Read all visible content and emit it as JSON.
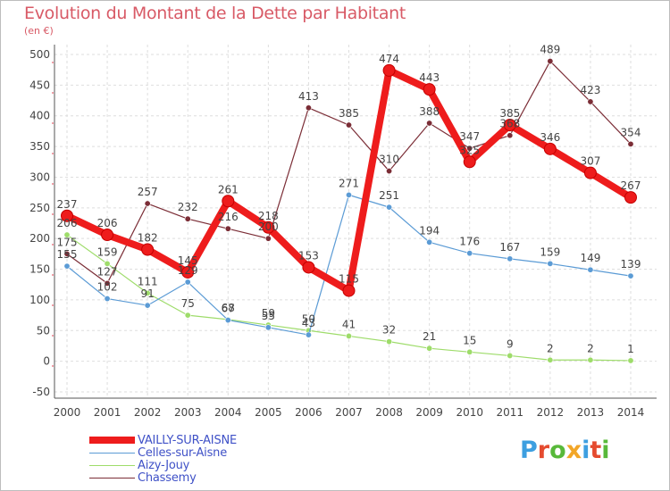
{
  "title": "Evolution du Montant de la Dette par Habitant",
  "subtitle": "(en €)",
  "logo": {
    "text": "Proxiti",
    "colors": [
      "#3d9fe0",
      "#e54b2f",
      "#58b93a",
      "#f2a627",
      "#3d9fe0",
      "#e54b2f",
      "#58b93a"
    ]
  },
  "chart_data": {
    "type": "line",
    "x": [
      "2000",
      "2001",
      "2002",
      "2003",
      "2004",
      "2005",
      "2006",
      "2007",
      "2008",
      "2009",
      "2010",
      "2011",
      "2012",
      "2013",
      "2014"
    ],
    "ylim": [
      -50,
      500
    ],
    "yticks": [
      -50,
      0,
      50,
      100,
      150,
      200,
      250,
      300,
      350,
      400,
      450,
      500
    ],
    "grid": true,
    "legend_position": "bottom-left",
    "series": [
      {
        "name": "VAILLY-SUR-AISNE",
        "color": "#ee1c1c",
        "values": [
          237,
          206,
          182,
          145,
          261,
          218,
          153,
          115,
          474,
          443,
          325,
          385,
          346,
          307,
          267
        ]
      },
      {
        "name": "Celles-sur-Aisne",
        "color": "#5b9bd5",
        "values": [
          155,
          102,
          91,
          129,
          67,
          55,
          43,
          271,
          251,
          194,
          176,
          167,
          159,
          149,
          139
        ]
      },
      {
        "name": "Aizy-Jouy",
        "color": "#9edc6a",
        "values": [
          206,
          159,
          111,
          75,
          68,
          59,
          50,
          41,
          32,
          21,
          15,
          9,
          2,
          2,
          1
        ]
      },
      {
        "name": "Chassemy",
        "color": "#7b2d36",
        "values": [
          175,
          127,
          257,
          232,
          216,
          200,
          413,
          385,
          310,
          388,
          347,
          368,
          489,
          423,
          354
        ]
      }
    ],
    "data_labels": [
      {
        "x": "2000",
        "text": "237"
      },
      {
        "x": "2000",
        "text": "206"
      },
      {
        "x": "2000",
        "text": "175"
      },
      {
        "x": "2000",
        "text": "155"
      },
      {
        "x": "2001",
        "text": "206"
      },
      {
        "x": "2001",
        "text": "159"
      },
      {
        "x": "2001",
        "text": "127"
      },
      {
        "x": "2001",
        "text": "102"
      },
      {
        "x": "2002",
        "text": "257"
      },
      {
        "x": "2002",
        "text": "182"
      },
      {
        "x": "2002",
        "text": "111"
      },
      {
        "x": "2002",
        "text": "91"
      },
      {
        "x": "2003",
        "text": "232"
      },
      {
        "x": "2003",
        "text": "145"
      },
      {
        "x": "2003",
        "text": "129"
      },
      {
        "x": "2003",
        "text": "75"
      },
      {
        "x": "2004",
        "text": "261"
      },
      {
        "x": "2004",
        "text": "216"
      },
      {
        "x": "2004",
        "text": "68"
      },
      {
        "x": "2004",
        "text": "67"
      },
      {
        "x": "2005",
        "text": "218"
      },
      {
        "x": "2005",
        "text": "200"
      },
      {
        "x": "2005",
        "text": "59"
      },
      {
        "x": "2005",
        "text": "55"
      },
      {
        "x": "2006",
        "text": "413"
      },
      {
        "x": "2006",
        "text": "153"
      },
      {
        "x": "2006",
        "text": "50"
      },
      {
        "x": "2006",
        "text": "43"
      },
      {
        "x": "2007",
        "text": "385"
      },
      {
        "x": "2007",
        "text": "271"
      },
      {
        "x": "2007",
        "text": "115"
      },
      {
        "x": "2007",
        "text": "41"
      },
      {
        "x": "2008",
        "text": "474"
      },
      {
        "x": "2008",
        "text": "310"
      },
      {
        "x": "2008",
        "text": "251"
      },
      {
        "x": "2008",
        "text": "32"
      },
      {
        "x": "2009",
        "text": "443"
      },
      {
        "x": "2009",
        "text": "388"
      },
      {
        "x": "2009",
        "text": "194"
      },
      {
        "x": "2009",
        "text": "21"
      },
      {
        "x": "2010",
        "text": "347"
      },
      {
        "x": "2010",
        "text": "325"
      },
      {
        "x": "2010",
        "text": "176"
      },
      {
        "x": "2010",
        "text": "15"
      },
      {
        "x": "2011",
        "text": "385"
      },
      {
        "x": "2011",
        "text": "368"
      },
      {
        "x": "2011",
        "text": "167"
      },
      {
        "x": "2011",
        "text": "9"
      },
      {
        "x": "2012",
        "text": "489"
      },
      {
        "x": "2012",
        "text": "346"
      },
      {
        "x": "2012",
        "text": "159"
      },
      {
        "x": "2012",
        "text": "2"
      },
      {
        "x": "2013",
        "text": "423"
      },
      {
        "x": "2013",
        "text": "307"
      },
      {
        "x": "2013",
        "text": "149"
      },
      {
        "x": "2013",
        "text": "2"
      },
      {
        "x": "2014",
        "text": "354"
      },
      {
        "x": "2014",
        "text": "267"
      },
      {
        "x": "2014",
        "text": "139"
      },
      {
        "x": "2014",
        "text": "1"
      }
    ]
  }
}
